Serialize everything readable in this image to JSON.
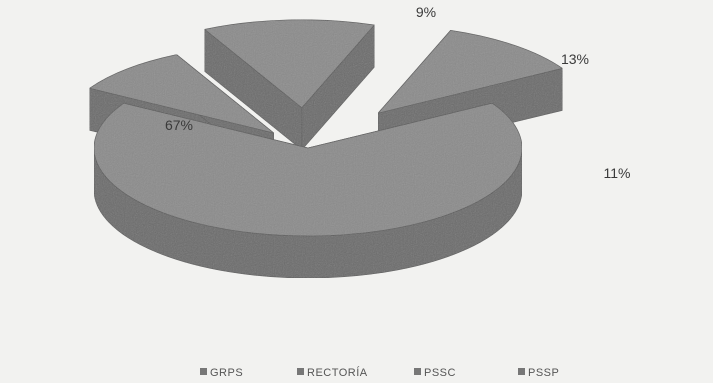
{
  "chart_data": {
    "type": "pie",
    "style": "3d-exploded",
    "categories": [
      "GRPS",
      "RECTORÍA",
      "PSSC",
      "PSSP"
    ],
    "values": [
      67,
      9,
      13,
      11
    ],
    "data_labels": [
      "67%",
      "9%",
      "13%",
      "11%"
    ],
    "legend_position": "bottom",
    "colors": {
      "slice_top": "#8b8b8b",
      "slice_side": "#6c6c6c",
      "slice_edge": "#5a5a5a",
      "background": "#f2f2f0",
      "legend_marker": "#777777"
    }
  }
}
